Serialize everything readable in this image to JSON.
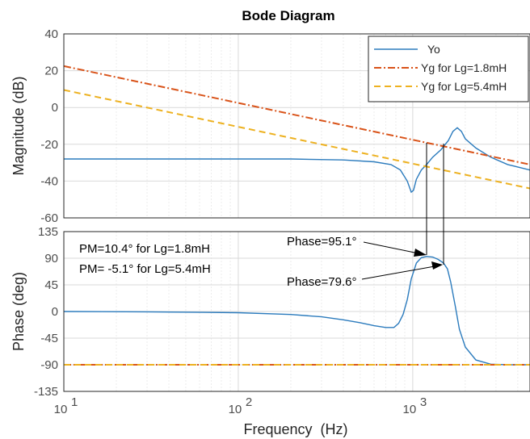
{
  "chart_data": [
    {
      "type": "line",
      "title": "Bode Diagram",
      "xlabel": "",
      "ylabel": "Magnitude (dB)",
      "xscale": "log",
      "xlim": [
        10,
        4700
      ],
      "ylim": [
        -60,
        40
      ],
      "yticks": [
        40,
        20,
        0,
        -20,
        -40,
        -60
      ],
      "grid": true,
      "legend": "top-right",
      "series": [
        {
          "name": "Yo",
          "color": "#2b7bbd",
          "style": "solid",
          "x": [
            10,
            30,
            100,
            200,
            400,
            600,
            750,
            850,
            930,
            980,
            1010,
            1050,
            1120,
            1200,
            1300,
            1450,
            1600,
            1700,
            1800,
            1900,
            2000,
            2300,
            2800,
            3500,
            4700
          ],
          "y": [
            -28,
            -28,
            -28,
            -28,
            -28.5,
            -29.5,
            -31,
            -34,
            -40,
            -46,
            -45,
            -39,
            -34,
            -31,
            -27,
            -23,
            -18,
            -13,
            -11,
            -13,
            -17,
            -22,
            -27,
            -31,
            -34
          ]
        },
        {
          "name": "Yg for Lg=1.8mH",
          "color": "#d95319",
          "style": "dashdot",
          "x": [
            10,
            4700
          ],
          "y": [
            22.5,
            -31
          ]
        },
        {
          "name": "Yg for Lg=5.4mH",
          "color": "#edb120",
          "style": "dashed",
          "x": [
            10,
            4700
          ],
          "y": [
            9.5,
            -44
          ]
        }
      ]
    },
    {
      "type": "line",
      "title": "",
      "xlabel": "Frequency  (Hz)",
      "ylabel": "Phase (deg)",
      "xscale": "log",
      "xlim": [
        10,
        4700
      ],
      "ylim": [
        -135,
        135
      ],
      "yticks": [
        135,
        90,
        45,
        0,
        -45,
        -90,
        -135
      ],
      "xtick_labels": [
        "10",
        "10",
        "10"
      ],
      "xtick_exponents": [
        "1",
        "2",
        "3"
      ],
      "grid": true,
      "series": [
        {
          "name": "",
          "color": "#2b7bbd",
          "style": "solid",
          "x": [
            10,
            30,
            100,
            200,
            300,
            400,
            500,
            600,
            700,
            780,
            830,
            880,
            930,
            980,
            1050,
            1120,
            1200,
            1300,
            1400,
            1500,
            1580,
            1650,
            1750,
            1850,
            2000,
            2300,
            2800,
            3500,
            4700
          ],
          "y": [
            0,
            -0.5,
            -2,
            -5,
            -9,
            -14,
            -19,
            -24,
            -27,
            -27,
            -20,
            -5,
            20,
            55,
            82,
            91,
            93,
            92,
            88,
            82,
            72,
            50,
            10,
            -30,
            -60,
            -82,
            -89,
            -90,
            -90
          ]
        },
        {
          "name": "",
          "color": "#d95319",
          "style": "dashdot",
          "x": [
            10,
            4700
          ],
          "y": [
            -90,
            -90
          ]
        },
        {
          "name": "",
          "color": "#edb120",
          "style": "dashed",
          "x": [
            10,
            4700
          ],
          "y": [
            -90,
            -90
          ]
        }
      ]
    }
  ],
  "annotations": {
    "pm_line1": "PM=10.4° for Lg=1.8mH",
    "pm_line2": "PM= -5.1° for Lg=5.4mH",
    "phase1": "Phase=95.1°",
    "phase2": "Phase=79.6°"
  }
}
